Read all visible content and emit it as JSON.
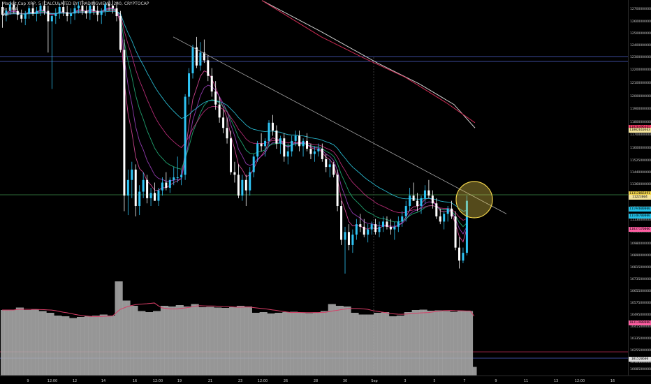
{
  "header": {
    "title": "Market Cap XRP, 5 (CALCULATED BY TRADINGVIEW), 240, CRYPTOCAP",
    "indicator1": "8x EMA",
    "indicator2": "Vol"
  },
  "colors": {
    "background": "#000000",
    "up_candle": "#2fc4f5",
    "down_candle": "#ffffff",
    "volume": "#b0b0b0",
    "ema_fast": "#e04a9c",
    "ema_mid": "#22b07a",
    "ema_slow": "#2bc8e0",
    "ema_200": "#cc2a52",
    "ema_300": "#d0d0d0",
    "trendline": "#a8a8a8",
    "highlight": "#f2d54c"
  },
  "chart_data": {
    "type": "candlestick",
    "symbol": "Market Cap XRP",
    "timeframe": "240",
    "ylim": [
      10000000000,
      12800000000
    ],
    "price_axis_labels": [
      "12700000000",
      "12600000000",
      "12500000000",
      "12400000000",
      "12300000000",
      "12200000000",
      "12100000000",
      "12000000000",
      "11900000000",
      "11800000000",
      "11700000000",
      "11600000000",
      "11525000000",
      "11440000000",
      "11360000000",
      "11280000000",
      "11200000000",
      "11130000000",
      "11050000000",
      "10980000000",
      "10890000000",
      "10815000000",
      "10735000000",
      "10655000000",
      "10575000000",
      "10495000000",
      "10415000000",
      "10335000000",
      "10255000000",
      "10165000000",
      "10085000000"
    ],
    "time_axis_labels": [
      "9",
      "12:00",
      "12",
      "14",
      "16",
      "12:00",
      "19",
      "21",
      "23",
      "12:00",
      "26",
      "28",
      "30",
      "Sep",
      "3",
      "5",
      "7",
      "9",
      "11",
      "13",
      "12:00",
      "16"
    ],
    "price_tags": [
      {
        "label": "11826496465",
        "color": "#ff3f6d",
        "price": 11826000000
      },
      {
        "label": "11802610363",
        "color": "#f3e39b",
        "price": 11802000000
      },
      {
        "label": "11312066491",
        "color": "#f2d54c",
        "price": 11312000000
      },
      {
        "label": "11223604",
        "color": "#f3e39b",
        "price": 11285000000
      },
      {
        "label": "11194600000",
        "color": "#22c1e8",
        "price": 11195000000
      },
      {
        "label": "11140700000",
        "color": "#22c1e8",
        "price": 11140000000
      },
      {
        "label": "11037170006",
        "color": "#ff5ea2",
        "price": 11038000000
      },
      {
        "label": "10313900000",
        "color": "#ff5ea2",
        "price": 10320000000
      },
      {
        "label": "101520600",
        "color": "#dddddd",
        "price": 10040000000
      }
    ],
    "candles": [
      [
        12750,
        12790,
        12590,
        12690
      ],
      [
        12690,
        12740,
        12640,
        12720
      ],
      [
        12720,
        12790,
        12690,
        12770
      ],
      [
        12770,
        12800,
        12700,
        12730
      ],
      [
        12720,
        12770,
        12650,
        12690
      ],
      [
        12690,
        12730,
        12630,
        12660
      ],
      [
        12660,
        12720,
        12610,
        12700
      ],
      [
        12700,
        12760,
        12660,
        12740
      ],
      [
        12740,
        12780,
        12680,
        12700
      ],
      [
        12700,
        12750,
        12640,
        12720
      ],
      [
        12720,
        12780,
        12680,
        12760
      ],
      [
        12760,
        12800,
        12690,
        12720
      ],
      [
        12720,
        12760,
        12400,
        12640
      ],
      [
        12640,
        12700,
        12120,
        12680
      ],
      [
        12680,
        12740,
        12620,
        12700
      ],
      [
        12700,
        12780,
        12660,
        12750
      ],
      [
        12750,
        12800,
        12680,
        12710
      ],
      [
        12710,
        12760,
        12640,
        12680
      ],
      [
        12680,
        12740,
        12620,
        12700
      ],
      [
        12700,
        12770,
        12650,
        12740
      ],
      [
        12740,
        12790,
        12700,
        12760
      ],
      [
        12760,
        12800,
        12690,
        12720
      ],
      [
        12720,
        12760,
        12660,
        12700
      ],
      [
        12700,
        12780,
        12650,
        12760
      ],
      [
        12760,
        12800,
        12690,
        12720
      ],
      [
        12720,
        12760,
        12640,
        12690
      ],
      [
        12690,
        12740,
        12620,
        12720
      ],
      [
        12720,
        12790,
        12680,
        12770
      ],
      [
        12770,
        12800,
        12720,
        12760
      ],
      [
        12760,
        12800,
        12700,
        12740
      ],
      [
        12740,
        12790,
        12640,
        12680
      ],
      [
        12680,
        12720,
        12400,
        12420
      ],
      [
        12420,
        12500,
        11180,
        11300
      ],
      [
        11300,
        11500,
        11150,
        11420
      ],
      [
        11420,
        11560,
        11280,
        11500
      ],
      [
        11500,
        11540,
        11140,
        11220
      ],
      [
        11220,
        11380,
        11150,
        11330
      ],
      [
        11330,
        11480,
        11280,
        11420
      ],
      [
        11420,
        11460,
        11240,
        11280
      ],
      [
        11280,
        11360,
        11220,
        11320
      ],
      [
        11320,
        11400,
        11260,
        11260
      ],
      [
        11260,
        11360,
        11220,
        11340
      ],
      [
        11340,
        11440,
        11300,
        11400
      ],
      [
        11400,
        11480,
        11340,
        11360
      ],
      [
        11360,
        11440,
        11320,
        11420
      ],
      [
        11420,
        11520,
        11380,
        11440
      ],
      [
        11440,
        11600,
        11400,
        11440
      ],
      [
        11440,
        11500,
        11380,
        11460
      ],
      [
        11460,
        12080,
        11420,
        12060
      ],
      [
        12060,
        12280,
        12000,
        12240
      ],
      [
        12240,
        12460,
        12200,
        12440
      ],
      [
        12440,
        12520,
        12280,
        12300
      ],
      [
        12300,
        12480,
        12260,
        12400
      ],
      [
        12400,
        12500,
        12320,
        12340
      ],
      [
        12340,
        12380,
        12180,
        12220
      ],
      [
        12220,
        12280,
        12060,
        12100
      ],
      [
        12100,
        12180,
        11960,
        12000
      ],
      [
        12000,
        12060,
        11860,
        11900
      ],
      [
        11900,
        11960,
        11780,
        11820
      ],
      [
        11820,
        11900,
        11700,
        11740
      ],
      [
        11740,
        11800,
        11460,
        11480
      ],
      [
        11480,
        11560,
        11400,
        11460
      ],
      [
        11460,
        11540,
        11280,
        11300
      ],
      [
        11300,
        11460,
        11260,
        11420
      ],
      [
        11420,
        11460,
        11220,
        11340
      ],
      [
        11340,
        11520,
        11300,
        11480
      ],
      [
        11480,
        11620,
        11440,
        11600
      ],
      [
        11600,
        11720,
        11560,
        11700
      ],
      [
        11700,
        11780,
        11640,
        11680
      ],
      [
        11680,
        11740,
        11600,
        11720
      ],
      [
        11720,
        11880,
        11680,
        11860
      ],
      [
        11860,
        11920,
        11760,
        11800
      ],
      [
        11800,
        11840,
        11660,
        11700
      ],
      [
        11700,
        11760,
        11620,
        11740
      ],
      [
        11740,
        11780,
        11560,
        11600
      ],
      [
        11600,
        11700,
        11540,
        11640
      ],
      [
        11640,
        11760,
        11600,
        11720
      ],
      [
        11720,
        11800,
        11680,
        11760
      ],
      [
        11760,
        11800,
        11640,
        11680
      ],
      [
        11680,
        11740,
        11600,
        11720
      ],
      [
        11720,
        11780,
        11640,
        11660
      ],
      [
        11660,
        11700,
        11580,
        11620
      ],
      [
        11620,
        11680,
        11560,
        11640
      ],
      [
        11640,
        11700,
        11600,
        11660
      ],
      [
        11660,
        11700,
        11560,
        11580
      ],
      [
        11580,
        11620,
        11480,
        11520
      ],
      [
        11520,
        11580,
        11440,
        11540
      ],
      [
        11540,
        11560,
        11440,
        11460
      ],
      [
        11460,
        11500,
        11180,
        11220
      ],
      [
        11220,
        11260,
        10920,
        10960
      ],
      [
        10960,
        11060,
        10700,
        11020
      ],
      [
        11020,
        11080,
        10880,
        10920
      ],
      [
        10920,
        11040,
        10860,
        11000
      ],
      [
        11000,
        11120,
        10960,
        11080
      ],
      [
        11080,
        11160,
        11020,
        11060
      ],
      [
        11060,
        11120,
        10980,
        11000
      ],
      [
        11000,
        11080,
        10940,
        11040
      ],
      [
        11040,
        11100,
        11000,
        11080
      ],
      [
        11080,
        11120,
        11000,
        11020
      ],
      [
        11020,
        11100,
        10980,
        11060
      ],
      [
        11060,
        11140,
        11020,
        11100
      ],
      [
        11100,
        11140,
        11040,
        11060
      ],
      [
        11060,
        11120,
        11000,
        11040
      ],
      [
        11040,
        11100,
        10960,
        11060
      ],
      [
        11060,
        11140,
        11020,
        11100
      ],
      [
        11100,
        11180,
        11060,
        11140
      ],
      [
        11140,
        11260,
        11100,
        11220
      ],
      [
        11220,
        11360,
        11180,
        11300
      ],
      [
        11300,
        11400,
        11260,
        11260
      ],
      [
        11260,
        11320,
        11180,
        11220
      ],
      [
        11220,
        11300,
        11160,
        11280
      ],
      [
        11280,
        11380,
        11240,
        11340
      ],
      [
        11340,
        11420,
        11280,
        11300
      ],
      [
        11300,
        11340,
        11200,
        11240
      ],
      [
        11240,
        11280,
        11120,
        11140
      ],
      [
        11140,
        11200,
        11080,
        11100
      ],
      [
        11100,
        11180,
        11040,
        11160
      ],
      [
        11160,
        11220,
        11100,
        11200
      ],
      [
        11200,
        11260,
        11120,
        11140
      ],
      [
        11140,
        11180,
        10880,
        10900
      ],
      [
        10900,
        10980,
        10740,
        10800
      ],
      [
        10800,
        10900,
        10780,
        10860
      ],
      [
        10860,
        11300,
        10840,
        11260
      ]
    ],
    "volume": [
      188,
      188,
      188,
      188,
      195,
      195,
      188,
      188,
      190,
      190,
      185,
      185,
      180,
      180,
      172,
      172,
      170,
      170,
      165,
      165,
      168,
      168,
      170,
      170,
      172,
      172,
      175,
      175,
      172,
      172,
      270,
      270,
      215,
      215,
      200,
      200,
      185,
      185,
      182,
      182,
      185,
      185,
      200,
      200,
      198,
      198,
      202,
      202,
      198,
      198,
      205,
      205,
      196,
      196,
      197,
      197,
      195,
      195,
      194,
      194,
      196,
      196,
      200,
      200,
      198,
      198,
      180,
      180,
      182,
      182,
      178,
      178,
      180,
      180,
      182,
      182,
      183,
      183,
      180,
      180,
      179,
      179,
      180,
      180,
      185,
      185,
      205,
      205,
      200,
      200,
      198,
      198,
      180,
      180,
      175,
      175,
      175,
      175,
      180,
      180,
      182,
      182,
      170,
      170,
      172,
      172,
      182,
      182,
      188,
      188,
      189,
      189,
      186,
      186,
      187,
      187,
      185,
      185,
      183,
      183,
      186,
      186,
      185,
      185,
      25
    ],
    "ema_200": [
      [
        375,
        12800
      ],
      [
        460,
        12520
      ],
      [
        520,
        12360
      ],
      [
        580,
        12210
      ],
      [
        640,
        12010
      ],
      [
        680,
        11860
      ]
    ],
    "ema_300": [
      [
        375,
        12800
      ],
      [
        460,
        12560
      ],
      [
        540,
        12320
      ],
      [
        600,
        12160
      ],
      [
        650,
        12000
      ],
      [
        680,
        11820
      ]
    ],
    "trendline": [
      [
        248,
        12520
      ],
      [
        725,
        11160
      ]
    ],
    "highlight_circle": {
      "cx": 679,
      "cy": 286,
      "r": 26
    }
  }
}
